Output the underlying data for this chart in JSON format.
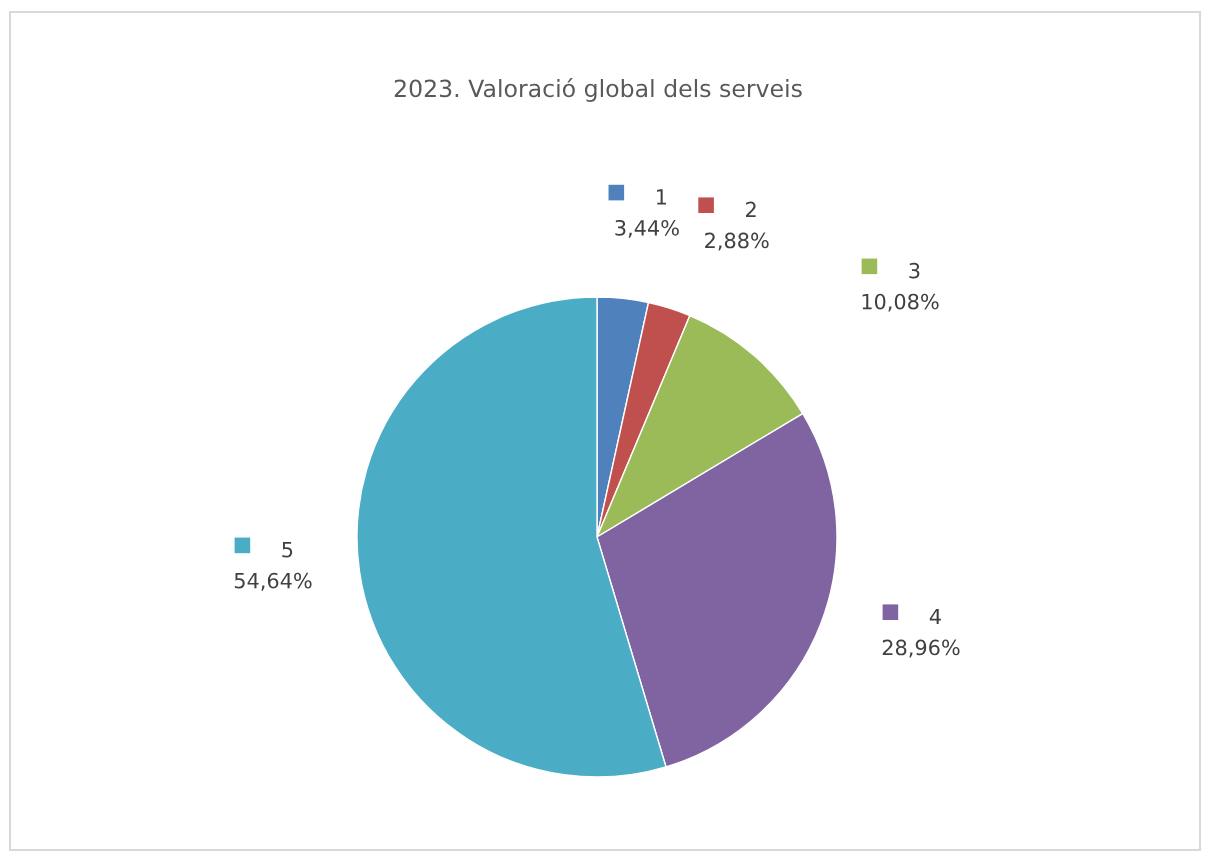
{
  "chart_data": {
    "type": "pie",
    "title": "2023. Valoració global dels serveis",
    "categories": [
      "1",
      "2",
      "3",
      "4",
      "5"
    ],
    "values": [
      3.44,
      2.88,
      10.08,
      28.96,
      54.64
    ],
    "value_labels": [
      "3,44%",
      "2,88%",
      "10,08%",
      "28,96%",
      "54,64%"
    ],
    "colors": [
      "#4f81bd",
      "#c0504d",
      "#9bbb59",
      "#8064a2",
      "#4bacc6"
    ],
    "legend": "top"
  }
}
